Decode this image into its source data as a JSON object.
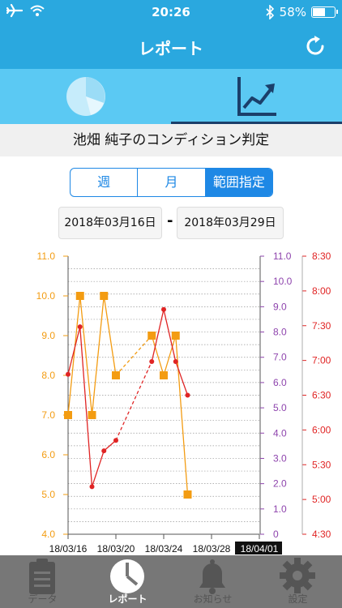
{
  "status": {
    "time": "20:26",
    "battery": "58%",
    "battery_level": 0.58
  },
  "nav": {
    "title": "レポート"
  },
  "subtitle": "池畑 純子のコンディション判定",
  "segments": [
    "週",
    "月",
    "範囲指定"
  ],
  "dates": {
    "start": "2018年03月16日",
    "separator": "-",
    "end": "2018年03月29日"
  },
  "bottom_tabs": [
    "データ",
    "レポート",
    "お知らせ",
    "設定"
  ],
  "colors": {
    "orange": "#f39c12",
    "red": "#e02424",
    "purple": "#8e44ad",
    "header": "#2aa8df",
    "tabbar": "#5bc9f3"
  },
  "chart_data": {
    "type": "line",
    "x_ticks": [
      "18/03/16",
      "18/03/20",
      "18/03/24",
      "18/03/28",
      "18/04/01"
    ],
    "x_start": "2018-03-16",
    "x_end": "2018-04-01",
    "axes": {
      "left": {
        "color": "orange",
        "min": 4.0,
        "max": 11.0,
        "ticks": [
          "4.0",
          "5.0",
          "6.0",
          "7.0",
          "8.0",
          "9.0",
          "10.0",
          "11.0"
        ]
      },
      "mid": {
        "color": "purple",
        "min": 0,
        "max": 11.0,
        "ticks": [
          "0",
          "1.0",
          "2.0",
          "3.0",
          "4.0",
          "5.0",
          "6.0",
          "7.0",
          "8.0",
          "9.0",
          "10.0",
          "11.0"
        ]
      },
      "right": {
        "color": "red",
        "min": "4:30",
        "max": "8:30",
        "ticks": [
          "4:30",
          "5:00",
          "5:30",
          "6:00",
          "6:30",
          "7:00",
          "7:30",
          "8:00",
          "8:30"
        ]
      }
    },
    "series": [
      {
        "axis": "left",
        "color": "orange",
        "marker": "square",
        "points": [
          {
            "x": "2018-03-16",
            "y": 7.0
          },
          {
            "x": "2018-03-17",
            "y": 10.0
          },
          {
            "x": "2018-03-18",
            "y": 7.0
          },
          {
            "x": "2018-03-19",
            "y": 10.0
          },
          {
            "x": "2018-03-20",
            "y": 8.0
          },
          {
            "x": "2018-03-23",
            "y": 9.0
          },
          {
            "x": "2018-03-24",
            "y": 8.0
          },
          {
            "x": "2018-03-25",
            "y": 9.0
          },
          {
            "x": "2018-03-26",
            "y": 5.0
          }
        ],
        "dashed_between": [
          [
            4,
            5
          ]
        ]
      },
      {
        "axis": "right",
        "color": "red",
        "marker": "circle",
        "points": [
          {
            "x": "2018-03-16",
            "y": "6:48"
          },
          {
            "x": "2018-03-17",
            "y": "7:29"
          },
          {
            "x": "2018-03-18",
            "y": "5:11"
          },
          {
            "x": "2018-03-19",
            "y": "5:42"
          },
          {
            "x": "2018-03-20",
            "y": "5:51"
          },
          {
            "x": "2018-03-23",
            "y": "6:59"
          },
          {
            "x": "2018-03-24",
            "y": "7:44"
          },
          {
            "x": "2018-03-25",
            "y": "6:59"
          },
          {
            "x": "2018-03-26",
            "y": "6:30"
          }
        ],
        "dashed_between": [
          [
            4,
            5
          ]
        ]
      }
    ]
  }
}
